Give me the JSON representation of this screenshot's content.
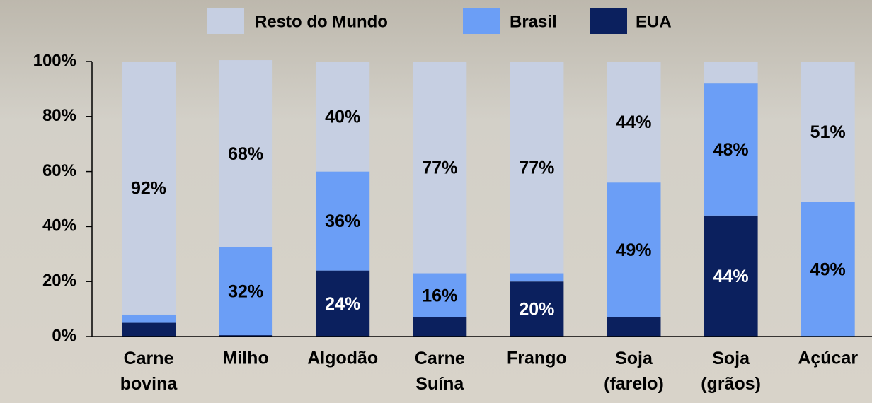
{
  "chart_data": {
    "type": "stacked-bar",
    "categories": [
      "Carne\nbovina",
      "Milho",
      "Algodão",
      "Carne\nSuína",
      "Frango",
      "Soja\n(farelo)",
      "Soja\n(grãos)",
      "Açúcar"
    ],
    "series": [
      {
        "name": "EUA",
        "color": "#0b205e",
        "values": [
          5,
          0.5,
          24,
          7,
          20,
          7,
          44,
          0
        ],
        "value_labels": [
          null,
          null,
          "24%",
          null,
          "20%",
          null,
          "44%",
          null
        ]
      },
      {
        "name": "Brasil",
        "color": "#6b9ef6",
        "values": [
          3,
          32,
          36,
          16,
          3,
          49,
          48,
          49
        ],
        "value_labels": [
          null,
          "32%",
          "36%",
          "16%",
          null,
          "49%",
          "48%",
          "49%"
        ]
      },
      {
        "name": "Resto do Mundo",
        "color": "#c6cfe2",
        "values": [
          92,
          68,
          40,
          77,
          77,
          44,
          8,
          51
        ],
        "value_labels": [
          "92%",
          "68%",
          "40%",
          "77%",
          "77%",
          "44%",
          null,
          "51%"
        ]
      }
    ],
    "ylim": [
      0,
      100
    ],
    "yticks": [
      {
        "value": 0,
        "label": "0%"
      },
      {
        "value": 20,
        "label": "20%"
      },
      {
        "value": 40,
        "label": "40%"
      },
      {
        "value": 60,
        "label": "60%"
      },
      {
        "value": 80,
        "label": "80%"
      },
      {
        "value": 100,
        "label": "100%"
      }
    ]
  }
}
